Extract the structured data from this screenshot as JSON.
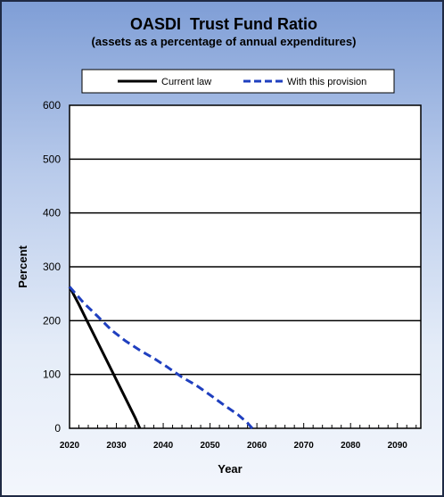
{
  "chart_data": {
    "type": "line",
    "title": "OASDI  Trust Fund Ratio",
    "subtitle": "(assets as a percentage of annual expenditures)",
    "xlabel": "Year",
    "ylabel": "Percent",
    "xlim": [
      2020,
      2095
    ],
    "ylim": [
      0,
      600
    ],
    "x_ticks": [
      2020,
      2030,
      2040,
      2050,
      2060,
      2070,
      2080,
      2090
    ],
    "y_ticks": [
      0,
      100,
      200,
      300,
      400,
      500,
      600
    ],
    "grid": "horizontal",
    "legend_position": "top",
    "series": [
      {
        "name": "Current law",
        "color": "#000000",
        "style": "solid",
        "x": [
          2020,
          2022,
          2024,
          2026,
          2028,
          2030,
          2032,
          2034,
          2035
        ],
        "y": [
          263,
          230,
          195,
          160,
          125,
          90,
          55,
          20,
          0
        ]
      },
      {
        "name": "With this provision",
        "color": "#1f3fbf",
        "style": "dashed",
        "x": [
          2020,
          2023,
          2026,
          2029,
          2032,
          2035,
          2038,
          2041,
          2044,
          2047,
          2050,
          2053,
          2056,
          2058,
          2059
        ],
        "y": [
          263,
          233,
          208,
          182,
          162,
          145,
          130,
          113,
          95,
          80,
          62,
          43,
          25,
          10,
          0
        ]
      }
    ]
  }
}
